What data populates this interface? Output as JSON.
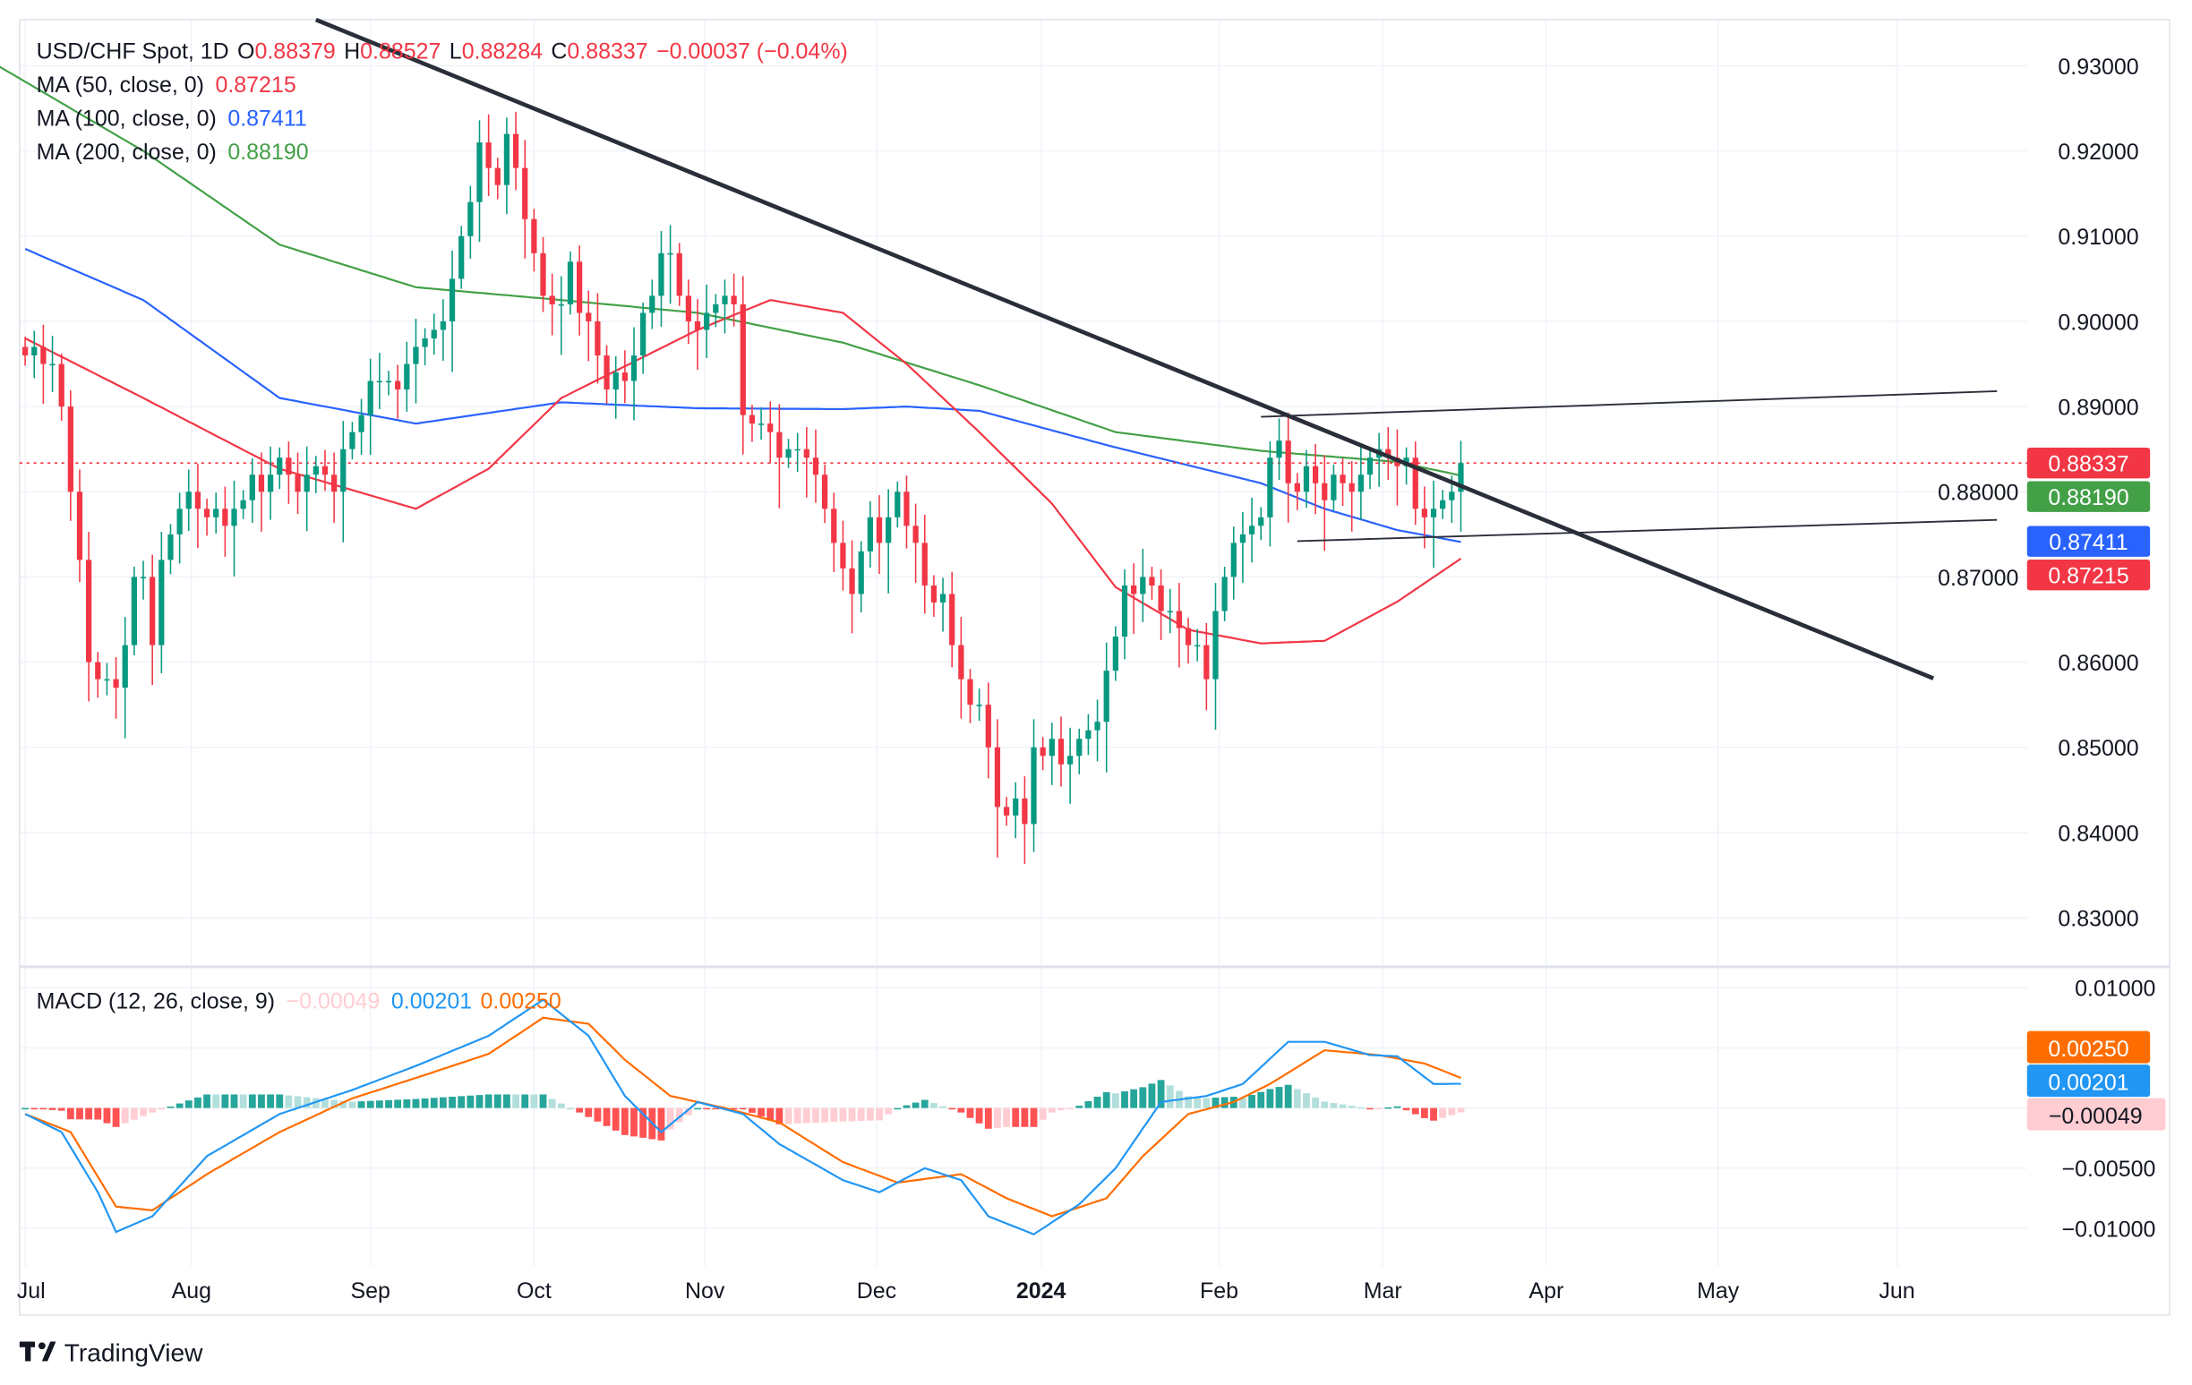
{
  "brand": "TradingView",
  "legend": {
    "symbol": "USD/CHF Spot, 1D",
    "o_label": "O",
    "o": "0.88379",
    "h_label": "H",
    "h": "0.88527",
    "l_label": "L",
    "l": "0.88284",
    "c_label": "C",
    "c": "0.88337",
    "change": "−0.00037 (−0.04%)",
    "ma50_label": "MA (50, close, 0)",
    "ma50": "0.87215",
    "ma100_label": "MA (100, close, 0)",
    "ma100": "0.87411",
    "ma200_label": "MA (200, close, 0)",
    "ma200": "0.88190",
    "macd_label": "MACD (12, 26, close, 9)",
    "macd_hist": "−0.00049",
    "macd": "0.00201",
    "macd_signal": "0.00250"
  },
  "price_tags": {
    "last": "0.88337",
    "ma200": "0.88190",
    "ma100": "0.87411",
    "ma50": "0.87215"
  },
  "macd_tags": {
    "signal": "0.00250",
    "macd": "0.00201",
    "hist": "−0.00049"
  },
  "colors": {
    "up": "#089981",
    "down": "#F23645",
    "ma50": "#F23645",
    "ma100": "#2962FF",
    "ma200": "#43A047",
    "macd": "#2196F3",
    "signal": "#FF6D00",
    "hist_up_strong": "#26A69A",
    "hist_up_weak": "#B2DFDB",
    "hist_dn_strong": "#FF5252",
    "hist_dn_weak": "#FFCDD2"
  },
  "chart_data": [
    {
      "type": "candlestick",
      "title": "USD/CHF Spot, 1D",
      "ylim": [
        0.825,
        0.935
      ],
      "y_ticks": [
        "0.93000",
        "0.92000",
        "0.91000",
        "0.90000",
        "0.89000",
        "0.88000",
        "0.87000",
        "0.86000",
        "0.85000",
        "0.84000",
        "0.83000"
      ],
      "x_ticks": [
        {
          "label": "Jul",
          "bar": 0
        },
        {
          "label": "Aug",
          "bar": 18.3
        },
        {
          "label": "Sep",
          "bar": 38
        },
        {
          "label": "Oct",
          "bar": 56
        },
        {
          "label": "Nov",
          "bar": 74.8
        },
        {
          "label": "Dec",
          "bar": 93.7
        },
        {
          "label": "2024",
          "bar": 111.8,
          "bold": true
        },
        {
          "label": "Feb",
          "bar": 131.4
        },
        {
          "label": "Mar",
          "bar": 149.4
        },
        {
          "label": "Apr",
          "bar": 167.4
        },
        {
          "label": "May",
          "bar": 186.3
        },
        {
          "label": "Jun",
          "bar": 206
        }
      ],
      "closes": [
        0.896,
        0.897,
        0.895,
        0.895,
        0.89,
        0.88,
        0.872,
        0.86,
        0.858,
        0.858,
        0.857,
        0.862,
        0.87,
        0.87,
        0.862,
        0.872,
        0.875,
        0.878,
        0.88,
        0.878,
        0.877,
        0.878,
        0.876,
        0.878,
        0.879,
        0.882,
        0.88,
        0.882,
        0.884,
        0.882,
        0.88,
        0.882,
        0.883,
        0.882,
        0.88,
        0.885,
        0.887,
        0.889,
        0.893,
        0.893,
        0.893,
        0.892,
        0.895,
        0.897,
        0.898,
        0.899,
        0.9,
        0.905,
        0.91,
        0.914,
        0.921,
        0.918,
        0.916,
        0.922,
        0.918,
        0.912,
        0.908,
        0.903,
        0.902,
        0.902,
        0.907,
        0.901,
        0.9,
        0.896,
        0.892,
        0.894,
        0.893,
        0.896,
        0.901,
        0.903,
        0.908,
        0.908,
        0.903,
        0.9,
        0.899,
        0.901,
        0.902,
        0.903,
        0.902,
        0.889,
        0.888,
        0.888,
        0.887,
        0.884,
        0.885,
        0.885,
        0.884,
        0.882,
        0.878,
        0.874,
        0.871,
        0.868,
        0.873,
        0.877,
        0.874,
        0.877,
        0.88,
        0.876,
        0.874,
        0.869,
        0.867,
        0.868,
        0.862,
        0.858,
        0.855,
        0.855,
        0.85,
        0.843,
        0.842,
        0.844,
        0.841,
        0.85,
        0.849,
        0.851,
        0.848,
        0.849,
        0.851,
        0.852,
        0.853,
        0.859,
        0.863,
        0.869,
        0.868,
        0.87,
        0.869,
        0.866,
        0.866,
        0.864,
        0.862,
        0.862,
        0.858,
        0.866,
        0.87,
        0.874,
        0.875,
        0.876,
        0.877,
        0.884,
        0.886,
        0.881,
        0.88,
        0.883,
        0.881,
        0.879,
        0.882,
        0.881,
        0.88,
        0.882,
        0.884,
        0.885,
        0.884,
        0.883,
        0.884,
        0.878,
        0.877,
        0.878,
        0.879,
        0.88,
        0.88337
      ],
      "ma50": [
        [
          0,
          0.898
        ],
        [
          13,
          0.891
        ],
        [
          28,
          0.8827
        ],
        [
          43,
          0.878
        ],
        [
          51,
          0.8827
        ],
        [
          59,
          0.891
        ],
        [
          74,
          0.899
        ],
        [
          82,
          0.9025
        ],
        [
          90,
          0.901
        ],
        [
          97,
          0.895
        ],
        [
          105,
          0.887
        ],
        [
          113,
          0.8786
        ],
        [
          120,
          0.8688
        ],
        [
          128,
          0.8638
        ],
        [
          136,
          0.8622
        ],
        [
          143,
          0.8625
        ],
        [
          151,
          0.8671
        ],
        [
          158,
          0.87215
        ]
      ],
      "ma100": [
        [
          0,
          0.9085
        ],
        [
          13,
          0.9025
        ],
        [
          28,
          0.891
        ],
        [
          43,
          0.888
        ],
        [
          59,
          0.8905
        ],
        [
          74,
          0.8898
        ],
        [
          90,
          0.8897
        ],
        [
          97,
          0.89
        ],
        [
          105,
          0.8895
        ],
        [
          120,
          0.8852
        ],
        [
          136,
          0.881
        ],
        [
          143,
          0.878
        ],
        [
          151,
          0.8755
        ],
        [
          158,
          0.87411
        ]
      ],
      "ma200": [
        [
          -3,
          0.93
        ],
        [
          13,
          0.92
        ],
        [
          28,
          0.909
        ],
        [
          43,
          0.904
        ],
        [
          59,
          0.9025
        ],
        [
          74,
          0.901
        ],
        [
          90,
          0.8975
        ],
        [
          105,
          0.8925
        ],
        [
          120,
          0.887
        ],
        [
          136,
          0.8848
        ],
        [
          151,
          0.8835
        ],
        [
          158,
          0.8819
        ]
      ],
      "trendlines": [
        [
          [
            32,
            0.9354
          ],
          [
            210,
            0.8581
          ]
        ],
        [
          [
            136,
            0.8888
          ],
          [
            217,
            0.8918
          ]
        ],
        [
          [
            140,
            0.8742
          ],
          [
            217,
            0.8767
          ]
        ]
      ]
    },
    {
      "type": "macd",
      "title": "MACD (12, 26, close, 9)",
      "ylim": [
        -0.0122,
        0.011
      ],
      "y_ticks": [
        "0.01000",
        "0.00500",
        "0.00000",
        "−0.00500",
        "−0.01000"
      ],
      "y_tick_values": [
        0.01,
        0.005,
        0,
        -0.005,
        -0.01
      ],
      "y_tick_shown": [
        true,
        false,
        false,
        true,
        true
      ],
      "macd": [
        [
          0,
          -0.0005
        ],
        [
          4,
          -0.002
        ],
        [
          8,
          -0.007
        ],
        [
          10,
          -0.0103
        ],
        [
          14,
          -0.009
        ],
        [
          20,
          -0.004
        ],
        [
          28,
          -0.0005
        ],
        [
          36,
          0.0015
        ],
        [
          43,
          0.0035
        ],
        [
          51,
          0.006
        ],
        [
          57,
          0.009
        ],
        [
          62,
          0.006
        ],
        [
          66,
          0.001
        ],
        [
          70,
          -0.002
        ],
        [
          74,
          0.0005
        ],
        [
          79,
          -0.0005
        ],
        [
          83,
          -0.003
        ],
        [
          90,
          -0.006
        ],
        [
          94,
          -0.007
        ],
        [
          99,
          -0.005
        ],
        [
          103,
          -0.006
        ],
        [
          106,
          -0.009
        ],
        [
          111,
          -0.0105
        ],
        [
          116,
          -0.008
        ],
        [
          120,
          -0.005
        ],
        [
          125,
          0.0005
        ],
        [
          130,
          0.001
        ],
        [
          134,
          0.002
        ],
        [
          139,
          0.0055
        ],
        [
          143,
          0.0055
        ],
        [
          148,
          0.0044
        ],
        [
          151,
          0.0043
        ],
        [
          155,
          0.002
        ],
        [
          158,
          0.00201
        ]
      ],
      "signal": [
        [
          0,
          -0.0005
        ],
        [
          5,
          -0.002
        ],
        [
          10,
          -0.0082
        ],
        [
          14,
          -0.0085
        ],
        [
          20,
          -0.0055
        ],
        [
          28,
          -0.002
        ],
        [
          36,
          0.0008
        ],
        [
          43,
          0.0025
        ],
        [
          51,
          0.0045
        ],
        [
          57,
          0.0075
        ],
        [
          62,
          0.007
        ],
        [
          66,
          0.004
        ],
        [
          71,
          0.001
        ],
        [
          77,
          0
        ],
        [
          83,
          -0.0012
        ],
        [
          90,
          -0.0045
        ],
        [
          96,
          -0.0062
        ],
        [
          103,
          -0.0055
        ],
        [
          108,
          -0.0075
        ],
        [
          113,
          -0.009
        ],
        [
          119,
          -0.0075
        ],
        [
          123,
          -0.004
        ],
        [
          128,
          -0.0005
        ],
        [
          133,
          0.0005
        ],
        [
          137,
          0.002
        ],
        [
          143,
          0.0048
        ],
        [
          149,
          0.0044
        ],
        [
          154,
          0.0037
        ],
        [
          158,
          0.0025
        ]
      ]
    }
  ]
}
